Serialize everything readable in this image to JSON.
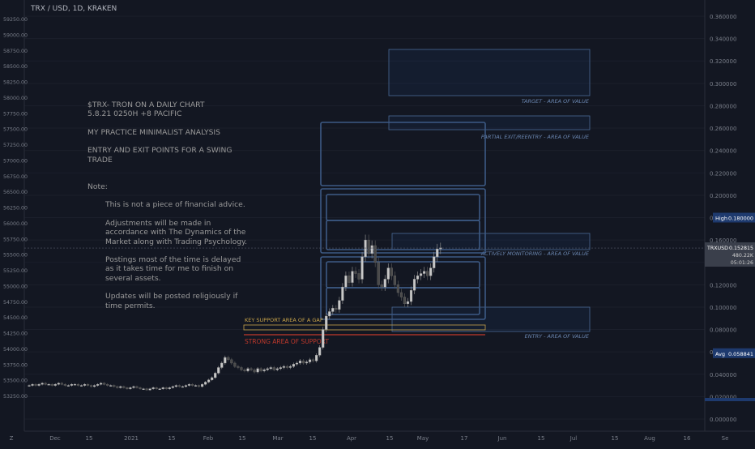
{
  "symbol": "TRX / USD, 1D, KRAKEN",
  "notes": {
    "title_line": "$TRX- TRON ON A DAILY CHART",
    "date_line": "5.8.21  0250H +8 PACIFIC",
    "subtitle": "MY PRACTICE MINIMALIST ANALYSIS",
    "purpose": "ENTRY AND EXIT POINTS FOR A SWING TRADE",
    "note_label": "Note:",
    "disclaimer": "This is not a piece of financial advice.",
    "adjustments": "Adjustments will be made in accordance with The Dynamics of the Market along with Trading Psychology.",
    "postings": "Postings most of the time is delayed as it takes time for me to finish on several assets.",
    "updates": "Updates will be posted religiously if time permits."
  },
  "zones": {
    "target": "TARGET - AREA OF VALUE",
    "partial": "PARTIAL EXIT/REENTRY - AREA OF VALUE",
    "monitoring": "ACTIVELY MONITORING - AREA OF VALUE",
    "entry": "ENTRY - AREA OF VALUE",
    "key_support": "KEY SUPPORT AREA OF A GAP",
    "strong_support": "STRONG AREA OF SUPPORT"
  },
  "colors": {
    "background": "#131722",
    "zone_blue": "#4a6a96",
    "bull": "#c8c8c8",
    "bear": "#4a4a4a",
    "support_yellow": "#c9a44a",
    "support_red": "#c0392b",
    "price_tag": "#3a3f4b",
    "level_tag": "#1e3a6e"
  },
  "chart_data": {
    "type": "candlestick",
    "title": "TRX / USD, 1D, KRAKEN",
    "left_axis_ticks": [
      "59250.00",
      "59000.00",
      "58750.00",
      "58500.00",
      "58250.00",
      "58000.00",
      "57750.00",
      "57500.00",
      "57250.00",
      "57000.00",
      "56750.00",
      "56500.00",
      "56250.00",
      "56000.00",
      "55750.00",
      "55500.00",
      "55250.00",
      "55000.00",
      "54750.00",
      "54500.00",
      "54250.00",
      "54000.00",
      "53750.00",
      "53500.00",
      "53250.00"
    ],
    "right_axis_ticks": [
      "0.360000",
      "0.340000",
      "0.320000",
      "0.300000",
      "0.280000",
      "0.260000",
      "0.240000",
      "0.220000",
      "0.200000",
      "0.180000",
      "0.160000",
      "0.140000",
      "0.120000",
      "0.100000",
      "0.080000",
      "0.060000",
      "0.040000",
      "0.020000",
      "0.000000"
    ],
    "x_axis_ticks": [
      "Dec",
      "15",
      "2021",
      "15",
      "Feb",
      "15",
      "Mar",
      "15",
      "Apr",
      "15",
      "May",
      "17",
      "Jun",
      "15",
      "Jul",
      "15",
      "Aug",
      "16",
      "Se"
    ],
    "ylim": [
      0,
      0.37
    ],
    "levels": [
      {
        "label": "High",
        "value": "0.180000"
      },
      {
        "label": "TRXUSD",
        "value": "0.152815"
      },
      {
        "label": "Avg",
        "value": "0.058841"
      }
    ],
    "volume_text": "480.22K",
    "countdown_text": "05:01:26",
    "candles_close_x_days_from_dec1": null,
    "series": [
      {
        "start": "2020-11-26",
        "closes": [
          0.03,
          0.031,
          0.03,
          0.031,
          0.032,
          0.031,
          0.031,
          0.03,
          0.031,
          0.032,
          0.031,
          0.03,
          0.03,
          0.031,
          0.031,
          0.03,
          0.03,
          0.031,
          0.03,
          0.029,
          0.03,
          0.031,
          0.032,
          0.031,
          0.03,
          0.03,
          0.029,
          0.028,
          0.029,
          0.028,
          0.027,
          0.028,
          0.029,
          0.028,
          0.027,
          0.027,
          0.026,
          0.027,
          0.028,
          0.027,
          0.027,
          0.028,
          0.027,
          0.028,
          0.029,
          0.03,
          0.029,
          0.029,
          0.03,
          0.031,
          0.03,
          0.03,
          0.029,
          0.031,
          0.033,
          0.035,
          0.037,
          0.041,
          0.046,
          0.05,
          0.055,
          0.053,
          0.05,
          0.047,
          0.046,
          0.044,
          0.043,
          0.045,
          0.044,
          0.042,
          0.045,
          0.043,
          0.044,
          0.045,
          0.046,
          0.044,
          0.045,
          0.046,
          0.047,
          0.046,
          0.047,
          0.049,
          0.05,
          0.052,
          0.05,
          0.051,
          0.053,
          0.052,
          0.057,
          0.064,
          0.08,
          0.092,
          0.096,
          0.099,
          0.098,
          0.106,
          0.118,
          0.128,
          0.122,
          0.132,
          0.13,
          0.125,
          0.145,
          0.16,
          0.148,
          0.155,
          0.14,
          0.12,
          0.118,
          0.125,
          0.135,
          0.128,
          0.12,
          0.113,
          0.109,
          0.103,
          0.105,
          0.115,
          0.125,
          0.128,
          0.13,
          0.132,
          0.128,
          0.135,
          0.145,
          0.152,
          0.153
        ]
      }
    ]
  }
}
